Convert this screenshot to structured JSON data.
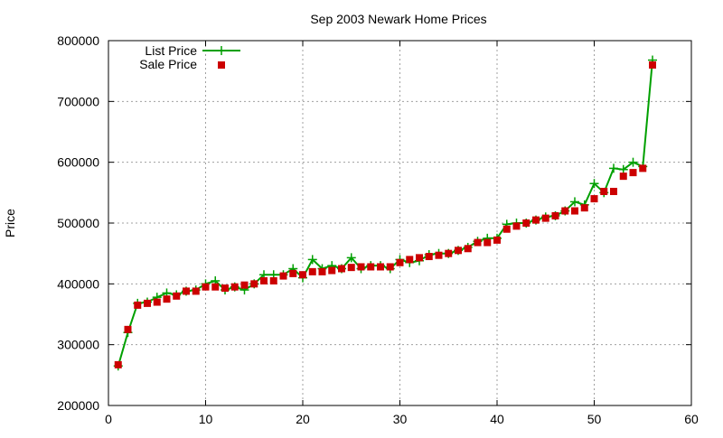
{
  "chart_data": {
    "type": "line",
    "title": "Sep 2003 Newark Home Prices",
    "xlabel": "",
    "ylabel": "Price",
    "xlim": [
      0,
      60
    ],
    "ylim": [
      200000,
      800000
    ],
    "x_ticks": [
      0,
      10,
      20,
      30,
      40,
      50,
      60
    ],
    "y_ticks": [
      200000,
      300000,
      400000,
      500000,
      600000,
      700000,
      800000
    ],
    "grid": true,
    "legend_position": "top-left",
    "series": [
      {
        "name": "List Price",
        "style": "line-with-plus-markers",
        "color": "#00a000",
        "x": [
          1,
          2,
          3,
          4,
          5,
          6,
          7,
          8,
          9,
          10,
          11,
          12,
          13,
          14,
          15,
          16,
          17,
          18,
          19,
          20,
          21,
          22,
          23,
          24,
          25,
          26,
          27,
          28,
          29,
          30,
          31,
          32,
          33,
          34,
          35,
          36,
          37,
          38,
          39,
          40,
          41,
          42,
          43,
          44,
          45,
          46,
          47,
          48,
          49,
          50,
          51,
          52,
          53,
          54,
          55,
          56
        ],
        "values": [
          265000,
          320000,
          368000,
          370000,
          378000,
          385000,
          382000,
          388000,
          390000,
          400000,
          405000,
          390000,
          395000,
          390000,
          400000,
          415000,
          415000,
          415000,
          425000,
          410000,
          440000,
          425000,
          430000,
          425000,
          443000,
          425000,
          430000,
          430000,
          425000,
          440000,
          435000,
          438000,
          448000,
          450000,
          450000,
          455000,
          460000,
          470000,
          475000,
          475000,
          498000,
          500000,
          500000,
          505000,
          510000,
          512000,
          520000,
          535000,
          530000,
          565000,
          550000,
          590000,
          588000,
          600000,
          593000,
          768000
        ]
      },
      {
        "name": "Sale Price",
        "style": "square-markers",
        "color": "#cc0000",
        "x": [
          1,
          2,
          3,
          4,
          5,
          6,
          7,
          8,
          9,
          10,
          11,
          12,
          13,
          14,
          15,
          16,
          17,
          18,
          19,
          20,
          21,
          22,
          23,
          24,
          25,
          26,
          27,
          28,
          29,
          30,
          31,
          32,
          33,
          34,
          35,
          36,
          37,
          38,
          39,
          40,
          41,
          42,
          43,
          44,
          45,
          46,
          47,
          48,
          49,
          50,
          51,
          52,
          53,
          54,
          55,
          56
        ],
        "values": [
          267000,
          325000,
          365000,
          368000,
          370000,
          375000,
          380000,
          388000,
          388000,
          395000,
          395000,
          393000,
          395000,
          398000,
          400000,
          405000,
          405000,
          413000,
          417000,
          415000,
          420000,
          420000,
          422000,
          425000,
          427000,
          428000,
          428000,
          428000,
          428000,
          435000,
          440000,
          443000,
          445000,
          447000,
          450000,
          455000,
          458000,
          468000,
          468000,
          472000,
          490000,
          495000,
          500000,
          505000,
          508000,
          512000,
          520000,
          520000,
          525000,
          540000,
          552000,
          552000,
          577000,
          583000,
          590000,
          760000
        ]
      }
    ]
  }
}
